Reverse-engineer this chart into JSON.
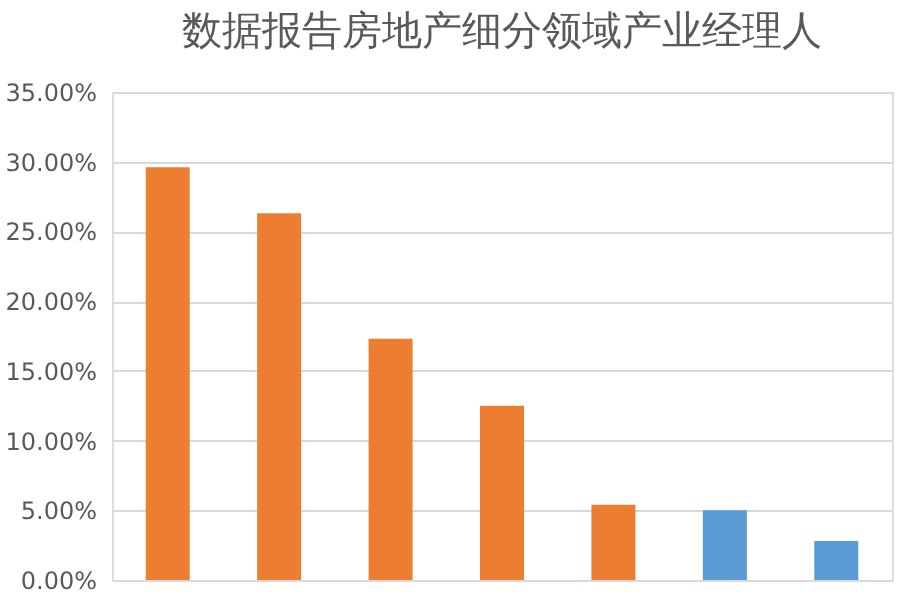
{
  "chart_data": {
    "type": "bar",
    "title": "数据报告房地产细分领域产业经理人",
    "categories": [
      null,
      null,
      null,
      null,
      null,
      null,
      null
    ],
    "values": [
      29.6,
      26.3,
      17.3,
      12.5,
      5.4,
      5.0,
      2.8
    ],
    "colors": [
      "#ed7d31",
      "#ed7d31",
      "#ed7d31",
      "#ed7d31",
      "#ed7d31",
      "#5b9bd5",
      "#5b9bd5"
    ],
    "ylim": [
      0,
      35
    ],
    "yticks": [
      {
        "value": 0,
        "label": "0.00%"
      },
      {
        "value": 5,
        "label": "5.00%"
      },
      {
        "value": 10,
        "label": "10.00%"
      },
      {
        "value": 15,
        "label": "15.00%"
      },
      {
        "value": 20,
        "label": "20.00%"
      },
      {
        "value": 25,
        "label": "25.00%"
      },
      {
        "value": 30,
        "label": "30.00%"
      },
      {
        "value": 35,
        "label": "35.00%"
      }
    ],
    "grid": "y",
    "tick_labels": "y",
    "legend": false
  }
}
